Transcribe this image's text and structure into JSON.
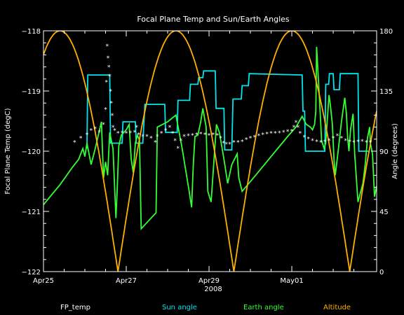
{
  "chart_data": {
    "type": "line",
    "title": "Focal Plane Temp and Sun/Earth Angles",
    "xlabel": "2008",
    "ylabel_left": "Focal Plane Temp (degC)",
    "ylabel_right": "Angle (degrees)",
    "x_unit": "day of month (Apr 2008; May 1 = 31)",
    "xlim": [
      25.0,
      33.05
    ],
    "ylim_left": [
      -122,
      -118
    ],
    "ylim_right": [
      0,
      180
    ],
    "x_ticks": [
      {
        "x": 25,
        "label": "Apr25"
      },
      {
        "x": 27,
        "label": "Apr27"
      },
      {
        "x": 29,
        "label": "Apr29"
      },
      {
        "x": 31,
        "label": "May01"
      }
    ],
    "y_ticks_left": [
      -118,
      -119,
      -120,
      -121,
      -122
    ],
    "y_tick_labels_left": [
      "−118",
      "−119",
      "−120",
      "−121",
      "−122"
    ],
    "y_ticks_right": [
      0,
      45,
      90,
      135,
      180
    ],
    "colors": {
      "background": "#000000",
      "axes": "#ffffff",
      "fp_temp": "#ffffff",
      "sun": "#00e5ee",
      "earth": "#33ff33",
      "altitude": "#ffb000"
    },
    "legend_position": "bottom",
    "series": [
      {
        "name": "Sun angle",
        "axis": "right",
        "color_key": "sun",
        "points": [
          [
            26.05,
            92
          ],
          [
            26.07,
            147
          ],
          [
            26.6,
            147
          ],
          [
            26.62,
            96
          ],
          [
            26.9,
            96
          ],
          [
            26.92,
            112
          ],
          [
            27.22,
            112
          ],
          [
            27.24,
            96
          ],
          [
            27.4,
            96
          ],
          [
            27.45,
            125
          ],
          [
            27.93,
            125
          ],
          [
            27.95,
            104
          ],
          [
            28.23,
            104
          ],
          [
            28.25,
            128
          ],
          [
            28.53,
            128
          ],
          [
            28.55,
            140
          ],
          [
            28.73,
            140
          ],
          [
            28.75,
            145
          ],
          [
            28.85,
            145
          ],
          [
            28.87,
            150
          ],
          [
            29.15,
            150
          ],
          [
            29.17,
            122
          ],
          [
            29.36,
            122
          ],
          [
            29.38,
            91
          ],
          [
            29.55,
            91
          ],
          [
            29.58,
            129
          ],
          [
            29.78,
            129
          ],
          [
            29.8,
            139
          ],
          [
            29.95,
            139
          ],
          [
            29.97,
            148
          ],
          [
            31.25,
            147
          ],
          [
            31.27,
            120
          ],
          [
            31.31,
            120
          ],
          [
            31.33,
            90
          ],
          [
            31.8,
            90
          ],
          [
            31.82,
            140
          ],
          [
            31.89,
            140
          ],
          [
            31.91,
            148
          ],
          [
            32.0,
            148
          ],
          [
            32.02,
            136
          ],
          [
            32.15,
            136
          ],
          [
            32.17,
            148
          ],
          [
            32.6,
            148
          ],
          [
            32.62,
            90
          ],
          [
            32.85,
            90
          ]
        ]
      },
      {
        "name": "Earth angle",
        "axis": "right",
        "color_key": "earth",
        "points": [
          [
            25.0,
            50
          ],
          [
            25.4,
            65
          ],
          [
            25.7,
            78
          ],
          [
            25.85,
            84
          ],
          [
            25.95,
            92
          ],
          [
            26.0,
            86
          ],
          [
            26.05,
            96
          ],
          [
            26.15,
            80
          ],
          [
            26.25,
            92
          ],
          [
            26.4,
            112
          ],
          [
            26.45,
            70
          ],
          [
            26.5,
            82
          ],
          [
            26.55,
            72
          ],
          [
            26.6,
            104
          ],
          [
            26.68,
            92
          ],
          [
            26.75,
            40
          ],
          [
            26.78,
            60
          ],
          [
            26.82,
            94
          ],
          [
            26.88,
            102
          ],
          [
            27.0,
            106
          ],
          [
            27.07,
            110
          ],
          [
            27.12,
            84
          ],
          [
            27.17,
            74
          ],
          [
            27.22,
            96
          ],
          [
            27.27,
            102
          ],
          [
            27.32,
            98
          ],
          [
            27.36,
            32
          ],
          [
            27.72,
            44
          ],
          [
            27.75,
            108
          ],
          [
            28.0,
            112
          ],
          [
            28.2,
            117
          ],
          [
            28.35,
            92
          ],
          [
            28.52,
            60
          ],
          [
            28.58,
            48
          ],
          [
            28.62,
            80
          ],
          [
            28.66,
            101
          ],
          [
            28.73,
            102
          ],
          [
            28.8,
            112
          ],
          [
            28.85,
            122
          ],
          [
            28.93,
            108
          ],
          [
            28.97,
            60
          ],
          [
            29.05,
            52
          ],
          [
            29.18,
            110
          ],
          [
            29.25,
            104
          ],
          [
            29.35,
            86
          ],
          [
            29.45,
            66
          ],
          [
            29.55,
            80
          ],
          [
            29.68,
            88
          ],
          [
            29.72,
            70
          ],
          [
            29.8,
            60
          ],
          [
            30.1,
            71
          ],
          [
            30.5,
            86
          ],
          [
            30.9,
            101
          ],
          [
            31.1,
            108
          ],
          [
            31.25,
            116
          ],
          [
            31.35,
            110
          ],
          [
            31.45,
            108
          ],
          [
            31.5,
            106
          ],
          [
            31.55,
            110
          ],
          [
            31.58,
            120
          ],
          [
            31.6,
            168
          ],
          [
            31.68,
            122
          ],
          [
            31.72,
            98
          ],
          [
            31.78,
            92
          ],
          [
            31.82,
            96
          ],
          [
            31.85,
            110
          ],
          [
            31.9,
            132
          ],
          [
            31.93,
            125
          ],
          [
            31.98,
            110
          ],
          [
            32.02,
            84
          ],
          [
            32.05,
            72
          ],
          [
            32.12,
            90
          ],
          [
            32.2,
            112
          ],
          [
            32.28,
            130
          ],
          [
            32.32,
            118
          ],
          [
            32.35,
            100
          ],
          [
            32.38,
            90
          ],
          [
            32.42,
            106
          ],
          [
            32.48,
            118
          ],
          [
            32.52,
            88
          ],
          [
            32.6,
            52
          ],
          [
            32.65,
            58
          ],
          [
            32.72,
            66
          ],
          [
            32.78,
            82
          ],
          [
            32.83,
            100
          ],
          [
            32.88,
            108
          ],
          [
            32.9,
            96
          ],
          [
            32.95,
            88
          ],
          [
            33.0,
            56
          ],
          [
            33.05,
            64
          ]
        ]
      },
      {
        "name": "Altitude",
        "axis": "right",
        "color_key": "altitude",
        "period_days": 2.8,
        "minima": [
          26.8,
          29.6,
          32.4
        ],
        "min_value": 0,
        "max_value": 180
      },
      {
        "name": "FP_temp",
        "axis": "left",
        "color_key": "fp_temp",
        "marker": "asterisk",
        "points": [
          [
            25.75,
            -119.85
          ],
          [
            25.9,
            -119.78
          ],
          [
            26.05,
            -119.72
          ],
          [
            26.15,
            -119.65
          ],
          [
            26.25,
            -119.62
          ],
          [
            26.35,
            -119.68
          ],
          [
            26.45,
            -119.55
          ],
          [
            26.5,
            -119.3
          ],
          [
            26.52,
            -118.85
          ],
          [
            26.54,
            -118.25
          ],
          [
            26.56,
            -118.45
          ],
          [
            26.58,
            -118.6
          ],
          [
            26.6,
            -118.75
          ],
          [
            26.62,
            -119.0
          ],
          [
            26.64,
            -119.2
          ],
          [
            26.66,
            -119.4
          ],
          [
            26.68,
            -119.6
          ],
          [
            26.72,
            -119.65
          ],
          [
            26.8,
            -119.7
          ],
          [
            26.9,
            -119.69
          ],
          [
            27.0,
            -119.7
          ],
          [
            27.1,
            -119.69
          ],
          [
            27.2,
            -119.68
          ],
          [
            27.25,
            -119.6
          ],
          [
            27.3,
            -119.72
          ],
          [
            27.4,
            -119.75
          ],
          [
            27.5,
            -119.75
          ],
          [
            27.6,
            -119.78
          ],
          [
            27.7,
            -119.85
          ],
          [
            27.75,
            -119.75
          ],
          [
            27.85,
            -119.7
          ],
          [
            27.95,
            -119.65
          ],
          [
            28.05,
            -119.6
          ],
          [
            28.12,
            -119.7
          ],
          [
            28.18,
            -119.82
          ],
          [
            28.25,
            -119.95
          ],
          [
            28.32,
            -119.82
          ],
          [
            28.4,
            -119.75
          ],
          [
            28.5,
            -119.74
          ],
          [
            28.6,
            -119.73
          ],
          [
            28.7,
            -119.72
          ],
          [
            28.8,
            -119.71
          ],
          [
            28.9,
            -119.72
          ],
          [
            29.0,
            -119.73
          ],
          [
            29.1,
            -119.72
          ],
          [
            29.2,
            -119.73
          ],
          [
            29.28,
            -119.78
          ],
          [
            29.35,
            -119.86
          ],
          [
            29.42,
            -119.88
          ],
          [
            29.5,
            -119.88
          ],
          [
            29.6,
            -119.85
          ],
          [
            29.7,
            -119.85
          ],
          [
            29.8,
            -119.84
          ],
          [
            29.9,
            -119.8
          ],
          [
            30.0,
            -119.78
          ],
          [
            30.1,
            -119.76
          ],
          [
            30.2,
            -119.74
          ],
          [
            30.3,
            -119.72
          ],
          [
            30.4,
            -119.71
          ],
          [
            30.5,
            -119.7
          ],
          [
            30.6,
            -119.7
          ],
          [
            30.7,
            -119.69
          ],
          [
            30.8,
            -119.68
          ],
          [
            30.9,
            -119.67
          ],
          [
            31.0,
            -119.66
          ],
          [
            31.05,
            -119.6
          ],
          [
            31.1,
            -119.52
          ],
          [
            31.15,
            -119.6
          ],
          [
            31.2,
            -119.7
          ],
          [
            31.3,
            -119.76
          ],
          [
            31.4,
            -119.79
          ],
          [
            31.5,
            -119.82
          ],
          [
            31.6,
            -119.84
          ],
          [
            31.7,
            -119.85
          ],
          [
            31.8,
            -119.84
          ],
          [
            31.9,
            -119.82
          ],
          [
            32.0,
            -119.78
          ],
          [
            32.1,
            -119.74
          ],
          [
            32.2,
            -119.78
          ],
          [
            32.3,
            -119.82
          ],
          [
            32.4,
            -119.84
          ],
          [
            32.5,
            -119.85
          ],
          [
            32.6,
            -119.84
          ],
          [
            32.7,
            -119.83
          ],
          [
            32.8,
            -119.85
          ],
          [
            32.9,
            -119.85
          ]
        ]
      }
    ]
  }
}
